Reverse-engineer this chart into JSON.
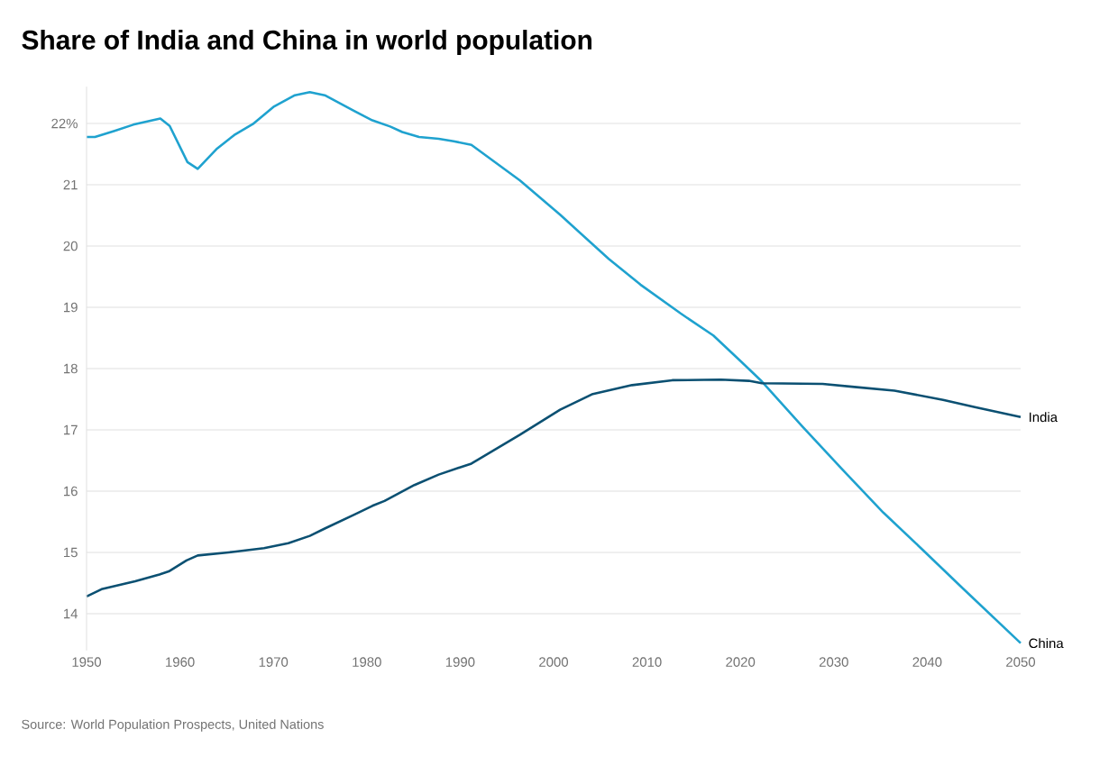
{
  "chart_data": {
    "type": "line",
    "title": "Share of India and China in world population",
    "annotations": [
      "Source: World Population Prospects, United Nations"
    ],
    "series": [
      {
        "name": "China",
        "color": "#1fa2cf",
        "x": [
          1950,
          1950.9,
          1953,
          1955,
          1957.9,
          1958.9,
          1960.8,
          1961.9,
          1963.9,
          1965.8,
          1967.8,
          1970,
          1972.3,
          1973.9,
          1975.5,
          1978.7,
          1980.6,
          1982.5,
          1983.8,
          1985.6,
          1987.7,
          1989.3,
          1991.2,
          1996.4,
          2000.7,
          2005.9,
          2009.3,
          2013.6,
          2017.1,
          2020.1,
          2022.3,
          2026.6,
          2031,
          2035.3,
          2039.6,
          2043.9,
          2050
        ],
        "values": [
          21.78,
          21.78,
          21.88,
          21.98,
          22.08,
          21.96,
          21.37,
          21.26,
          21.58,
          21.81,
          21.99,
          22.27,
          22.46,
          22.51,
          22.46,
          22.2,
          22.05,
          21.95,
          21.86,
          21.78,
          21.75,
          21.71,
          21.65,
          21.07,
          20.51,
          19.79,
          19.37,
          18.9,
          18.54,
          18.11,
          17.79,
          17.06,
          16.34,
          15.65,
          15.03,
          14.4,
          13.52
        ]
      },
      {
        "name": "India",
        "color": "#0b5072",
        "x": [
          1950,
          1951.6,
          1955.2,
          1957.8,
          1958.8,
          1960.7,
          1961.9,
          1965.8,
          1969,
          1971.6,
          1973.9,
          1975.5,
          1978.7,
          1980.6,
          1981.9,
          1985.1,
          1987.7,
          1991.2,
          1996.4,
          2000.7,
          2004.1,
          2008.4,
          2012.7,
          2017.9,
          2020.9,
          2022.3,
          2028.8,
          2032.2,
          2036.5,
          2041.7,
          2045.1,
          2050
        ],
        "values": [
          14.28,
          14.4,
          14.53,
          14.64,
          14.69,
          14.87,
          14.95,
          15.01,
          15.07,
          15.15,
          15.27,
          15.39,
          15.62,
          15.76,
          15.84,
          16.1,
          16.27,
          16.45,
          16.92,
          17.33,
          17.58,
          17.73,
          17.81,
          17.82,
          17.8,
          17.76,
          17.75,
          17.7,
          17.64,
          17.49,
          17.37,
          17.21
        ]
      }
    ],
    "xlim": [
      1950,
      2050
    ],
    "xticks": [
      1950,
      1960,
      1970,
      1980,
      1990,
      2000,
      2010,
      2020,
      2030,
      2040,
      2050
    ],
    "ylim": [
      13.4,
      22.6
    ],
    "yticks": [
      14,
      15,
      16,
      17,
      18,
      19,
      20,
      21,
      {
        "value": 22,
        "label": "22%"
      }
    ],
    "grid": "y",
    "line_style": "solid",
    "marker": "none"
  }
}
